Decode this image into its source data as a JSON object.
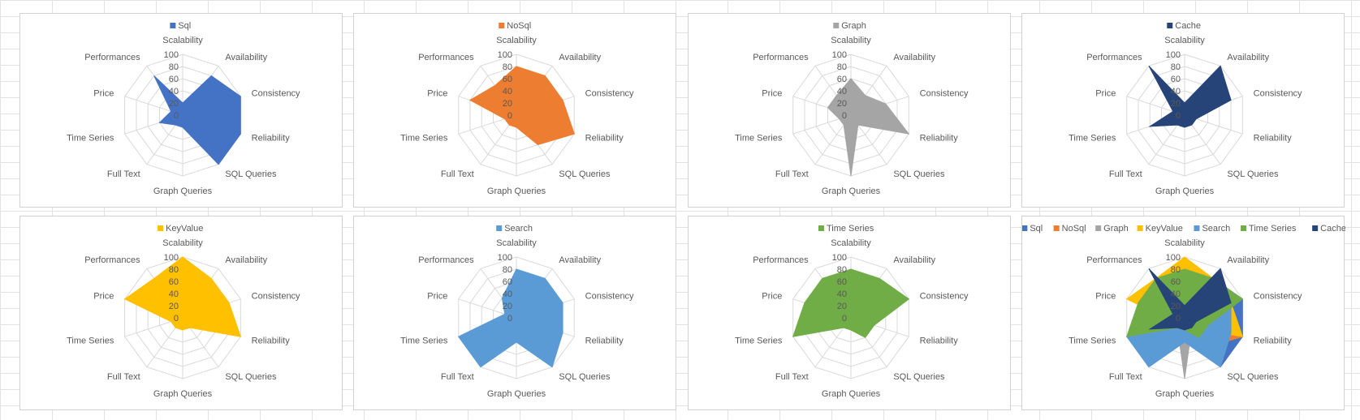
{
  "chart_data": [
    {
      "type": "radar",
      "title": "",
      "ylim": [
        0,
        100
      ],
      "categories": [
        "Scalability",
        "Availability",
        "Consistency",
        "Reliability",
        "SQL Queries",
        "Graph Queries",
        "Full Text",
        "Time Series",
        "Price",
        "Performances"
      ],
      "tick_labels": [
        "0",
        "20",
        "40",
        "60",
        "80",
        "100"
      ],
      "legend": {
        "position": "top",
        "entries": [
          "Sql"
        ]
      },
      "series": [
        {
          "name": "Sql",
          "color": "#4472C4",
          "values": [
            20,
            80,
            100,
            100,
            100,
            20,
            20,
            40,
            20,
            80
          ]
        }
      ]
    },
    {
      "type": "radar",
      "title": "",
      "ylim": [
        0,
        100
      ],
      "categories": [
        "Scalability",
        "Availability",
        "Consistency",
        "Reliability",
        "SQL Queries",
        "Graph Queries",
        "Full Text",
        "Time Series",
        "Price",
        "Performances"
      ],
      "tick_labels": [
        "0",
        "20",
        "40",
        "60",
        "80",
        "100"
      ],
      "legend": {
        "position": "top",
        "entries": [
          "NoSql"
        ]
      },
      "series": [
        {
          "name": "NoSql",
          "color": "#ED7D31",
          "values": [
            80,
            80,
            80,
            100,
            60,
            20,
            20,
            20,
            80,
            60
          ]
        }
      ]
    },
    {
      "type": "radar",
      "title": "",
      "ylim": [
        0,
        100
      ],
      "categories": [
        "Scalability",
        "Availability",
        "Consistency",
        "Reliability",
        "SQL Queries",
        "Graph Queries",
        "Full Text",
        "Time Series",
        "Price",
        "Performances"
      ],
      "tick_labels": [
        "0",
        "20",
        "40",
        "60",
        "80",
        "100"
      ],
      "legend": {
        "position": "top",
        "entries": [
          "Graph"
        ]
      },
      "series": [
        {
          "name": "Graph",
          "color": "#A5A5A5",
          "values": [
            60,
            40,
            60,
            100,
            20,
            100,
            20,
            20,
            40,
            40
          ]
        }
      ]
    },
    {
      "type": "radar",
      "title": "",
      "ylim": [
        0,
        100
      ],
      "categories": [
        "Scalability",
        "Availability",
        "Consistency",
        "Reliability",
        "SQL Queries",
        "Graph Queries",
        "Full Text",
        "Time Series",
        "Price",
        "Performances"
      ],
      "tick_labels": [
        "0",
        "20",
        "40",
        "60",
        "80",
        "100"
      ],
      "legend": {
        "position": "top",
        "entries": [
          "Cache"
        ]
      },
      "series": [
        {
          "name": "Cache",
          "color": "#264478",
          "values": [
            20,
            100,
            80,
            20,
            20,
            20,
            20,
            60,
            20,
            100
          ]
        }
      ]
    },
    {
      "type": "radar",
      "title": "",
      "ylim": [
        0,
        100
      ],
      "categories": [
        "Scalability",
        "Availability",
        "Consistency",
        "Reliability",
        "SQL Queries",
        "Graph Queries",
        "Full Text",
        "Time Series",
        "Price",
        "Performances"
      ],
      "tick_labels": [
        "0",
        "20",
        "40",
        "60",
        "80",
        "100"
      ],
      "legend": {
        "position": "top",
        "entries": [
          "KeyValue"
        ]
      },
      "series": [
        {
          "name": "KeyValue",
          "color": "#FFC000",
          "values": [
            100,
            80,
            80,
            100,
            20,
            20,
            20,
            20,
            100,
            80
          ]
        }
      ]
    },
    {
      "type": "radar",
      "title": "",
      "ylim": [
        0,
        100
      ],
      "categories": [
        "Scalability",
        "Availability",
        "Consistency",
        "Reliability",
        "SQL Queries",
        "Graph Queries",
        "Full Text",
        "Time Series",
        "Price",
        "Performances"
      ],
      "tick_labels": [
        "0",
        "20",
        "40",
        "60",
        "80",
        "100"
      ],
      "legend": {
        "position": "top",
        "entries": [
          "Search"
        ]
      },
      "series": [
        {
          "name": "Search",
          "color": "#5B9BD5",
          "values": [
            80,
            80,
            80,
            80,
            100,
            40,
            100,
            100,
            20,
            40
          ]
        }
      ]
    },
    {
      "type": "radar",
      "title": "",
      "ylim": [
        0,
        100
      ],
      "categories": [
        "Scalability",
        "Availability",
        "Consistency",
        "Reliability",
        "SQL Queries",
        "Graph Queries",
        "Full Text",
        "Time Series",
        "Price",
        "Performances"
      ],
      "tick_labels": [
        "0",
        "20",
        "40",
        "60",
        "80",
        "100"
      ],
      "legend": {
        "position": "top",
        "entries": [
          "Time Series"
        ]
      },
      "series": [
        {
          "name": "Time Series",
          "color": "#70AD47",
          "values": [
            80,
            80,
            100,
            40,
            40,
            20,
            20,
            100,
            80,
            80
          ]
        }
      ]
    },
    {
      "type": "radar",
      "title": "",
      "ylim": [
        0,
        100
      ],
      "categories": [
        "Scalability",
        "Availability",
        "Consistency",
        "Reliability",
        "SQL Queries",
        "Graph Queries",
        "Full Text",
        "Time Series",
        "Price",
        "Performances"
      ],
      "tick_labels": [
        "0",
        "20",
        "40",
        "60",
        "80",
        "100"
      ],
      "legend": {
        "position": "top",
        "entries": [
          "Sql",
          "NoSql",
          "Graph",
          "KeyValue",
          "Search",
          "Time Series",
          "Cache"
        ]
      },
      "series": [
        {
          "name": "Sql",
          "color": "#4472C4",
          "values": [
            20,
            80,
            100,
            100,
            100,
            20,
            20,
            40,
            20,
            80
          ]
        },
        {
          "name": "NoSql",
          "color": "#ED7D31",
          "values": [
            80,
            80,
            80,
            100,
            60,
            20,
            20,
            20,
            80,
            60
          ]
        },
        {
          "name": "Graph",
          "color": "#A5A5A5",
          "values": [
            60,
            40,
            60,
            100,
            20,
            100,
            20,
            20,
            40,
            40
          ]
        },
        {
          "name": "KeyValue",
          "color": "#FFC000",
          "values": [
            100,
            80,
            80,
            100,
            20,
            20,
            20,
            20,
            100,
            80
          ]
        },
        {
          "name": "Search",
          "color": "#5B9BD5",
          "values": [
            80,
            80,
            80,
            80,
            100,
            40,
            100,
            100,
            20,
            40
          ]
        },
        {
          "name": "Time Series",
          "color": "#70AD47",
          "values": [
            80,
            80,
            100,
            40,
            40,
            20,
            20,
            100,
            80,
            80
          ]
        },
        {
          "name": "Cache",
          "color": "#264478",
          "values": [
            20,
            100,
            80,
            20,
            20,
            20,
            20,
            60,
            20,
            100
          ]
        }
      ]
    }
  ]
}
